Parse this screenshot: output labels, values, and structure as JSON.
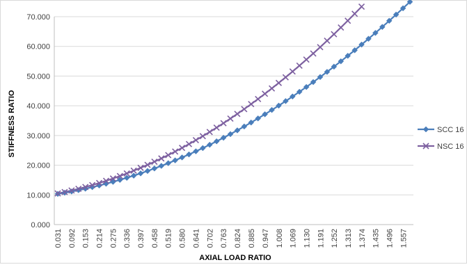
{
  "chart_data": {
    "type": "line",
    "title": "",
    "xlabel": "AXIAL LOAD RATIO",
    "ylabel": "STIFFNESS RATIO",
    "ylim": [
      0,
      70
    ],
    "yticks": [
      "0.000",
      "10.000",
      "20.000",
      "30.000",
      "40.000",
      "50.000",
      "60.000",
      "70.000"
    ],
    "grid": "horizontal",
    "legend_position": "right",
    "x_tick_labels": [
      "0.031",
      "0.092",
      "0.153",
      "0.214",
      "0.275",
      "0.336",
      "0.397",
      "0.458",
      "0.519",
      "0.580",
      "0.641",
      "0.702",
      "0.763",
      "0.824",
      "0.885",
      "0.947",
      "1.008",
      "1.069",
      "1.130",
      "1.191",
      "1.252",
      "1.313",
      "1.374",
      "1.435",
      "1.496",
      "1.557"
    ],
    "x_step": 0.0305,
    "series": [
      {
        "name": "SCC 16",
        "color": "#4a7ebb",
        "marker": "diamond",
        "x": [
          0.031,
          0.0615,
          0.092,
          0.1225,
          0.153,
          0.1835,
          0.214,
          0.2445,
          0.275,
          0.3055,
          0.336,
          0.3665,
          0.397,
          0.4275,
          0.458,
          0.4885,
          0.519,
          0.5495,
          0.58,
          0.6105,
          0.641,
          0.6715,
          0.702,
          0.7325,
          0.763,
          0.7935,
          0.824,
          0.8545,
          0.885,
          0.9155,
          0.946,
          0.9765,
          1.007,
          1.0375,
          1.068,
          1.0985,
          1.129,
          1.1595,
          1.19,
          1.2205,
          1.251,
          1.2815,
          1.312,
          1.3425,
          1.373,
          1.4035,
          1.434,
          1.4645,
          1.495,
          1.5255,
          1.556,
          1.5865
        ],
        "values": [
          10.34,
          10.72,
          11.14,
          11.59,
          12.08,
          12.61,
          13.17,
          13.76,
          14.39,
          15.05,
          15.75,
          16.48,
          17.25,
          18.06,
          18.9,
          19.77,
          20.68,
          21.63,
          22.61,
          23.62,
          24.67,
          25.76,
          26.88,
          28.04,
          29.24,
          30.46,
          31.73,
          33.03,
          34.37,
          35.74,
          37.14,
          38.59,
          40.06,
          41.58,
          43.13,
          44.71,
          46.33,
          47.99,
          49.68,
          51.41,
          53.18,
          54.98,
          56.82,
          58.7,
          60.61,
          62.56,
          64.54,
          66.56,
          68.62,
          70.71,
          72.84,
          75.0
        ]
      },
      {
        "name": "NSC 16",
        "color": "#7d60a0",
        "marker": "x",
        "x": [
          0.031,
          0.0615,
          0.092,
          0.1225,
          0.153,
          0.1835,
          0.214,
          0.2445,
          0.275,
          0.3055,
          0.336,
          0.3665,
          0.397,
          0.4275,
          0.458,
          0.4885,
          0.519,
          0.5495,
          0.58,
          0.6105,
          0.641,
          0.6715,
          0.702,
          0.7325,
          0.763,
          0.7935,
          0.824,
          0.8545,
          0.885,
          0.9155,
          0.946,
          0.9765,
          1.007,
          1.0375,
          1.068,
          1.0985,
          1.129,
          1.1595,
          1.19,
          1.2205,
          1.251,
          1.2815,
          1.312,
          1.3425,
          1.373
        ],
        "values": [
          10.5,
          10.97,
          11.48,
          12.04,
          12.65,
          13.3,
          14.0,
          14.74,
          15.52,
          16.35,
          17.23,
          18.15,
          19.11,
          20.12,
          21.17,
          22.27,
          23.41,
          24.6,
          25.83,
          27.1,
          28.42,
          29.78,
          31.19,
          32.64,
          34.14,
          35.68,
          37.26,
          38.89,
          40.57,
          42.28,
          44.05,
          45.85,
          47.7,
          49.6,
          51.54,
          53.52,
          55.55,
          57.62,
          59.74,
          61.9,
          64.11,
          66.36,
          68.65,
          70.99,
          73.37
        ]
      }
    ]
  }
}
